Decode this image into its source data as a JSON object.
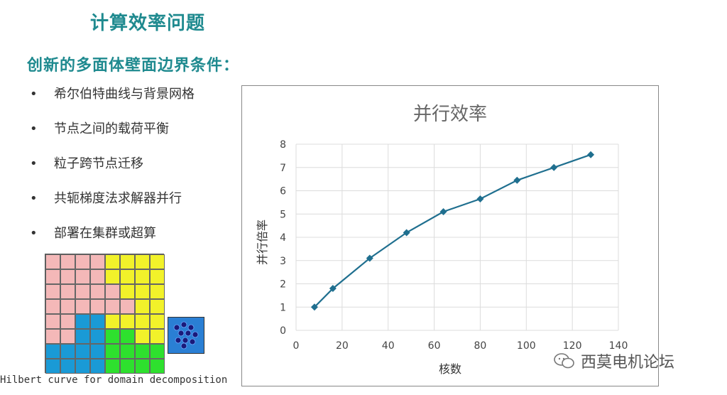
{
  "page": {
    "title": "计算效率问题",
    "subtitle": "创新的多面体壁面边界条件：",
    "bullets": [
      "希尔伯特曲线与背景网格",
      "节点之间的载荷平衡",
      "粒子跨节点迁移",
      "共轭梯度法求解器并行",
      "部署在集群或超算"
    ],
    "figure_caption": "Hilbert curve for domain decomposition",
    "watermark": "西莫电机论坛"
  },
  "colors": {
    "accent": "#1f8a8f",
    "series": "#1f6f8f",
    "grid_pink": "#f4b8b8",
    "grid_yellow": "#f2f22a",
    "grid_blue": "#1a9ad6",
    "grid_green": "#2ee02e",
    "particle_box": "#2a7fd4"
  },
  "hilbert_grid": {
    "rows": [
      [
        "pink",
        "pink",
        "pink",
        "pink",
        "yellow",
        "yellow",
        "yellow",
        "yellow"
      ],
      [
        "pink",
        "pink",
        "pink",
        "pink",
        "yellow",
        "yellow",
        "yellow",
        "yellow"
      ],
      [
        "pink",
        "pink",
        "pink",
        "pink",
        "pink",
        "yellow",
        "yellow",
        "yellow"
      ],
      [
        "pink",
        "pink",
        "pink",
        "pink",
        "pink",
        "pink",
        "yellow",
        "yellow"
      ],
      [
        "pink",
        "pink",
        "blue",
        "blue",
        "yellow",
        "yellow",
        "yellow",
        "yellow"
      ],
      [
        "pink",
        "pink",
        "blue",
        "blue",
        "green",
        "green",
        "yellow",
        "yellow"
      ],
      [
        "blue",
        "blue",
        "blue",
        "blue",
        "green",
        "green",
        "green",
        "green"
      ],
      [
        "blue",
        "blue",
        "blue",
        "blue",
        "green",
        "green",
        "green",
        "green"
      ]
    ]
  },
  "chart_data": {
    "type": "line",
    "title": "并行效率",
    "xlabel": "核数",
    "ylabel": "并行倍率",
    "xlim": [
      0,
      140
    ],
    "ylim": [
      0,
      8
    ],
    "xticks": [
      0,
      20,
      40,
      60,
      80,
      100,
      120,
      140
    ],
    "yticks": [
      0,
      1,
      2,
      3,
      4,
      5,
      6,
      7,
      8
    ],
    "grid": true,
    "series": [
      {
        "x": [
          8,
          16,
          32,
          48,
          64,
          80,
          96,
          112,
          128
        ],
        "y": [
          1.0,
          1.8,
          3.1,
          4.2,
          5.1,
          5.65,
          6.45,
          7.0,
          7.55
        ]
      }
    ]
  }
}
